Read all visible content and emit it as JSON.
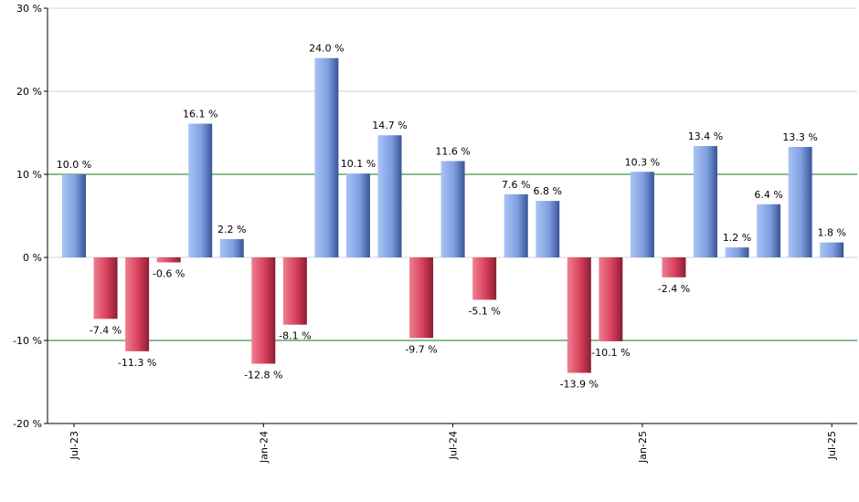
{
  "chart_data": {
    "type": "bar",
    "title": "",
    "xlabel": "",
    "ylabel": "",
    "ylim": [
      -20,
      30
    ],
    "y_ticks": [
      {
        "value": 30,
        "label": "30 %"
      },
      {
        "value": 20,
        "label": "20 %"
      },
      {
        "value": 10,
        "label": "10 %"
      },
      {
        "value": 0,
        "label": "0 %"
      },
      {
        "value": -10,
        "label": "-10 %"
      },
      {
        "value": -20,
        "label": "-20 %"
      }
    ],
    "grid": true,
    "reference_lines": [
      10,
      -10
    ],
    "values": [
      10.0,
      -7.4,
      -11.3,
      -0.6,
      16.1,
      2.2,
      -12.8,
      -8.1,
      24.0,
      10.1,
      14.7,
      -9.7,
      11.6,
      -5.1,
      7.6,
      6.8,
      -13.9,
      -10.1,
      10.3,
      -2.4,
      13.4,
      1.2,
      6.4,
      13.3,
      1.8
    ],
    "data_labels": [
      "10.0 %",
      "-7.4 %",
      "-11.3 %",
      "-0.6 %",
      "16.1 %",
      "2.2 %",
      "-12.8 %",
      "-8.1 %",
      "24.0 %",
      "10.1 %",
      "14.7 %",
      "-9.7 %",
      "11.6 %",
      "-5.1 %",
      "7.6 %",
      "6.8 %",
      "-13.9 %",
      "-10.1 %",
      "10.3 %",
      "-2.4 %",
      "13.4 %",
      "1.2 %",
      "6.4 %",
      "13.3 %",
      "1.8 %"
    ],
    "x_tick_labels": [
      {
        "index": 0,
        "label": "Jul-23"
      },
      {
        "index": 6,
        "label": "Jan-24"
      },
      {
        "index": 12,
        "label": "Jul-24"
      },
      {
        "index": 18,
        "label": "Jan-25"
      },
      {
        "index": 24,
        "label": "Jul-25"
      }
    ],
    "colors": {
      "positive": "#7f9fe0",
      "positive_light": "#a9c3f5",
      "positive_dark": "#3a5496",
      "negative": "#d9405c",
      "negative_light": "#ef7f91",
      "negative_dark": "#8a1e34",
      "grid": "#d3d3d3",
      "reference_line": "#0f7a1a",
      "axis": "#000000"
    }
  }
}
